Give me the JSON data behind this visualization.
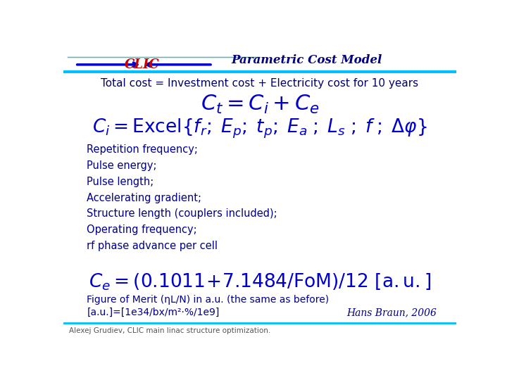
{
  "title": "Parametric Cost Model",
  "subtitle": "Total cost = Investment cost + Electricity cost for 10 years",
  "bullet_lines": [
    "Repetition frequency;",
    "Pulse energy;",
    "Pulse length;",
    "Accelerating gradient;",
    "Structure length (couplers included);",
    "Operating frequency;",
    "rf phase advance per cell"
  ],
  "caption1": "Figure of Merit (ηL/N) in a.u. (the same as before)",
  "caption2": "[a.u.]=[1e34/bx/m²·%/1e9]",
  "attribution": "Hans Braun, 2006",
  "footer": "Alexej Grudiev, CLIC main linac structure optimization.",
  "bg_color": "#ffffff",
  "title_color": "#000080",
  "blue_color": "#0000cc",
  "dark_blue": "#00008B",
  "header_line_color": "#00bfff",
  "clic_color": "#cc0000"
}
